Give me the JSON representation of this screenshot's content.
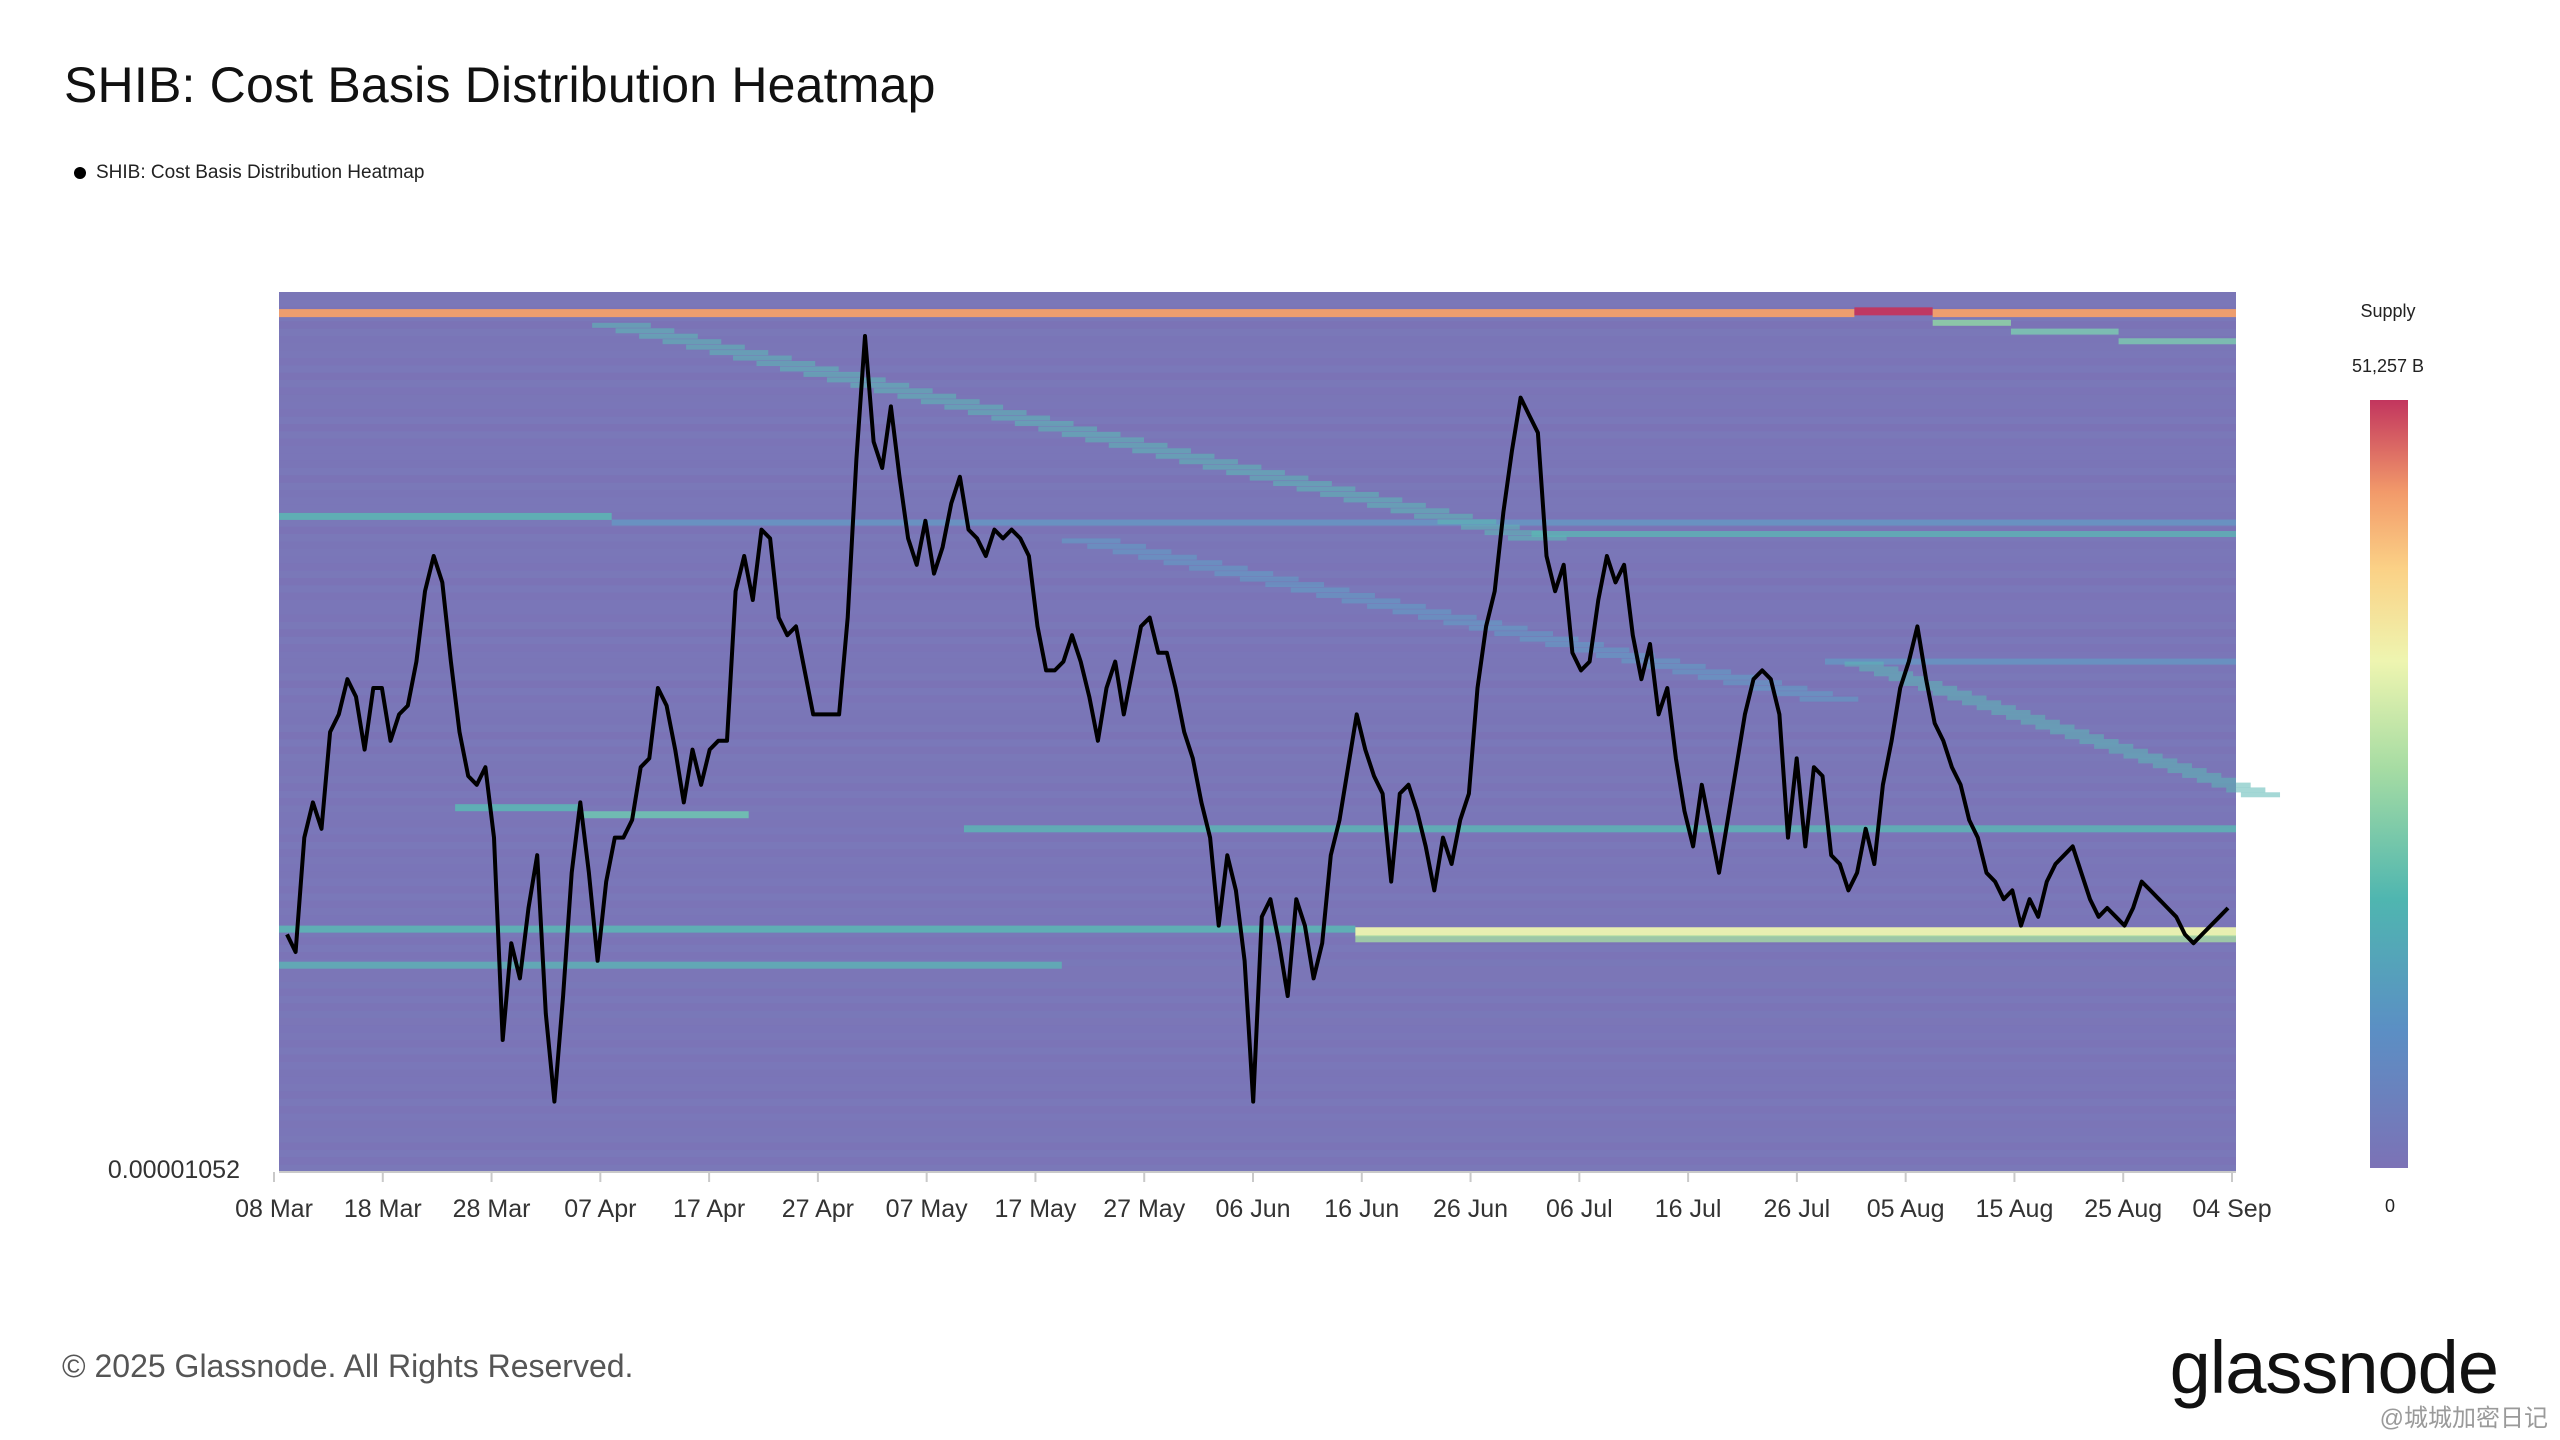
{
  "header": {
    "title": "SHIB: Cost Basis Distribution Heatmap",
    "legend_label": "SHIB: Cost Basis Distribution Heatmap"
  },
  "footer": {
    "copyright": "© 2025 Glassnode. All Rights Reserved.",
    "brand": "glassnode",
    "watermark": "glassnode",
    "corner_mark": "@城城加密日记"
  },
  "colors": {
    "heat_low": "#7c72b6",
    "heat_mid": "#5bb8b4",
    "heat_high_yellow": "#eef5b0",
    "heat_orange": "#f4a06a",
    "heat_top": "#c2355e",
    "price_line": "#000000"
  },
  "chart_data": {
    "type": "heatmap",
    "title": "SHIB: Cost Basis Distribution Heatmap",
    "series_name": "SHIB: Cost Basis Distribution Heatmap",
    "x_ticks": [
      "08 Mar",
      "18 Mar",
      "28 Mar",
      "07 Apr",
      "17 Apr",
      "27 Apr",
      "07 May",
      "17 May",
      "27 May",
      "06 Jun",
      "16 Jun",
      "26 Jun",
      "06 Jul",
      "16 Jul",
      "26 Jul",
      "05 Aug",
      "15 Aug",
      "25 Aug",
      "04 Sep"
    ],
    "y_min_label": "0.00001052",
    "colorbar": {
      "label": "Supply",
      "max_label": "51,257 B",
      "min_label": "0",
      "max_value": 51257,
      "min_value": 0,
      "unit": "B"
    },
    "x_range": [
      "2025-03-08",
      "2025-09-04"
    ],
    "price_line_relative": [
      0.27,
      0.25,
      0.38,
      0.42,
      0.39,
      0.5,
      0.52,
      0.56,
      0.54,
      0.48,
      0.55,
      0.55,
      0.49,
      0.52,
      0.53,
      0.58,
      0.66,
      0.7,
      0.67,
      0.58,
      0.5,
      0.45,
      0.44,
      0.46,
      0.38,
      0.15,
      0.26,
      0.22,
      0.3,
      0.36,
      0.18,
      0.08,
      0.2,
      0.34,
      0.42,
      0.34,
      0.24,
      0.33,
      0.38,
      0.38,
      0.4,
      0.46,
      0.47,
      0.55,
      0.53,
      0.48,
      0.42,
      0.48,
      0.44,
      0.48,
      0.49,
      0.49,
      0.66,
      0.7,
      0.65,
      0.73,
      0.72,
      0.63,
      0.61,
      0.62,
      0.57,
      0.52,
      0.52,
      0.52,
      0.52,
      0.63,
      0.81,
      0.95,
      0.83,
      0.8,
      0.87,
      0.79,
      0.72,
      0.69,
      0.74,
      0.68,
      0.71,
      0.76,
      0.79,
      0.73,
      0.72,
      0.7,
      0.73,
      0.72,
      0.73,
      0.72,
      0.7,
      0.62,
      0.57,
      0.57,
      0.58,
      0.61,
      0.58,
      0.54,
      0.49,
      0.55,
      0.58,
      0.52,
      0.57,
      0.62,
      0.63,
      0.59,
      0.59,
      0.55,
      0.5,
      0.47,
      0.42,
      0.38,
      0.28,
      0.36,
      0.32,
      0.24,
      0.08,
      0.29,
      0.31,
      0.26,
      0.2,
      0.31,
      0.28,
      0.22,
      0.26,
      0.36,
      0.4,
      0.46,
      0.52,
      0.48,
      0.45,
      0.43,
      0.33,
      0.43,
      0.44,
      0.41,
      0.37,
      0.32,
      0.38,
      0.35,
      0.4,
      0.43,
      0.55,
      0.62,
      0.66,
      0.75,
      0.82,
      0.88,
      0.86,
      0.84,
      0.7,
      0.66,
      0.69,
      0.59,
      0.57,
      0.58,
      0.65,
      0.7,
      0.67,
      0.69,
      0.61,
      0.56,
      0.6,
      0.52,
      0.55,
      0.47,
      0.41,
      0.37,
      0.44,
      0.39,
      0.34,
      0.4,
      0.46,
      0.52,
      0.56,
      0.57,
      0.56,
      0.52,
      0.38,
      0.47,
      0.37,
      0.46,
      0.45,
      0.36,
      0.35,
      0.32,
      0.34,
      0.39,
      0.35,
      0.44,
      0.49,
      0.55,
      0.58,
      0.62,
      0.56,
      0.51,
      0.49,
      0.46,
      0.44,
      0.4,
      0.38,
      0.34,
      0.33,
      0.31,
      0.32,
      0.28,
      0.31,
      0.29,
      0.33,
      0.35,
      0.36,
      0.37,
      0.34,
      0.31,
      0.29,
      0.3,
      0.29,
      0.28,
      0.3,
      0.33,
      0.32,
      0.31,
      0.3,
      0.29,
      0.27,
      0.26,
      0.27,
      0.28,
      0.29,
      0.3
    ]
  }
}
